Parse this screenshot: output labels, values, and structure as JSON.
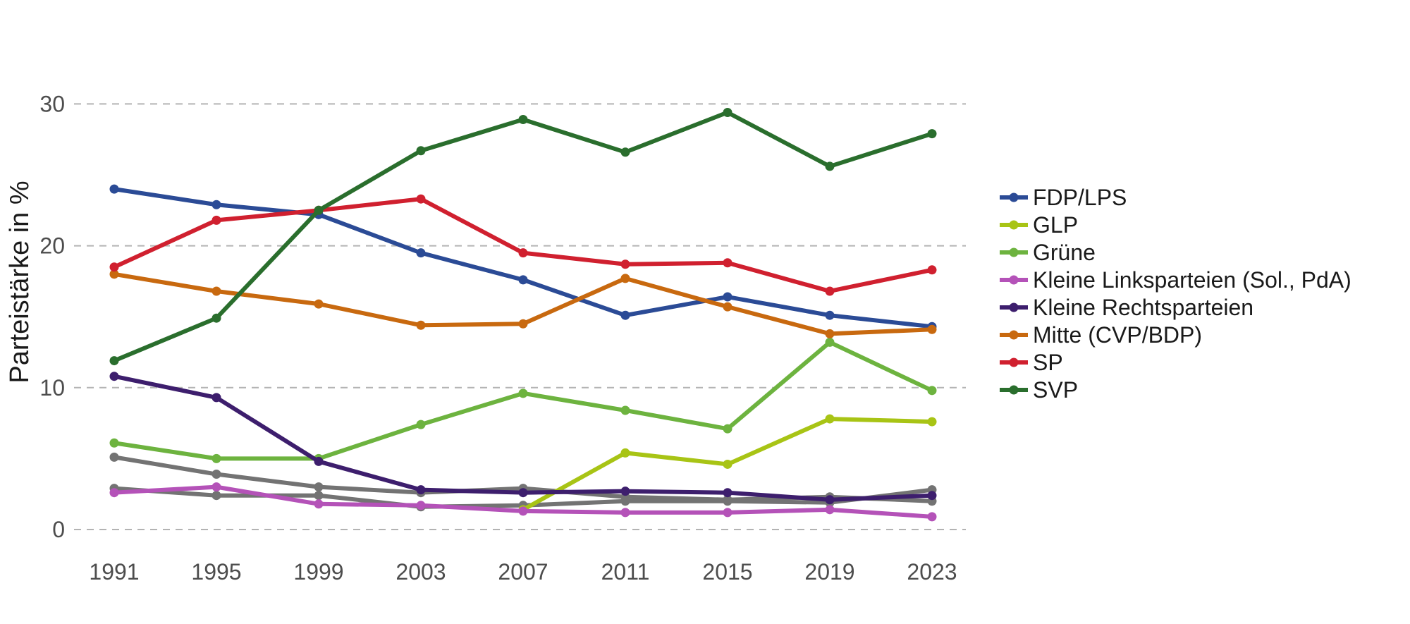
{
  "chart_data": {
    "type": "line",
    "title": "",
    "xlabel": "",
    "ylabel": "Parteistärke in %",
    "x": [
      "1991",
      "1995",
      "1999",
      "2003",
      "2007",
      "2011",
      "2015",
      "2019",
      "2023"
    ],
    "ylim": [
      0,
      32
    ],
    "yticks": [
      0,
      10,
      20,
      30
    ],
    "ytick_labels": [
      "0",
      "10",
      "20",
      "30"
    ],
    "grid": "horizontal dashed",
    "legend_position": "right",
    "series": [
      {
        "name": "FDP/LPS",
        "color": "#2b4b96",
        "values": [
          24.0,
          22.9,
          22.2,
          19.5,
          17.6,
          15.1,
          16.4,
          15.1,
          14.3
        ]
      },
      {
        "name": "GLP",
        "color": "#a8c415",
        "values": [
          null,
          null,
          null,
          null,
          1.4,
          5.4,
          4.6,
          7.8,
          7.6
        ]
      },
      {
        "name": "Grüne",
        "color": "#6db33f",
        "values": [
          6.1,
          5.0,
          5.0,
          7.4,
          9.6,
          8.4,
          7.1,
          13.2,
          9.8
        ]
      },
      {
        "name": "Kleine Linksparteien (Sol., PdA)",
        "color": "#b452b8",
        "values": [
          2.6,
          3.0,
          1.8,
          1.7,
          1.3,
          1.2,
          1.2,
          1.4,
          0.9
        ]
      },
      {
        "name": "Kleine Rechtsparteien",
        "color": "#3d1e6d",
        "values": [
          10.8,
          9.3,
          4.8,
          2.8,
          2.6,
          2.7,
          2.6,
          2.1,
          2.4
        ]
      },
      {
        "name": "Mitte (CVP/BDP)",
        "color": "#c8690f",
        "values": [
          18.0,
          16.8,
          15.9,
          14.4,
          14.5,
          17.7,
          15.7,
          13.8,
          14.1
        ]
      },
      {
        "name": "SP",
        "color": "#d0202f",
        "values": [
          18.5,
          21.8,
          22.5,
          23.3,
          19.5,
          18.7,
          18.8,
          16.8,
          18.3
        ]
      },
      {
        "name": "SVP",
        "color": "#2a6e2d",
        "values": [
          11.9,
          14.9,
          22.5,
          26.7,
          28.9,
          26.6,
          29.4,
          25.6,
          27.9
        ]
      }
    ],
    "unlabeled_series": [
      {
        "color": "#737373",
        "values": [
          5.1,
          3.9,
          3.0,
          2.6,
          2.9,
          2.3,
          2.1,
          2.3,
          2.0
        ]
      },
      {
        "color": "#737373",
        "values": [
          2.9,
          2.4,
          2.4,
          1.6,
          1.7,
          2.0,
          2.0,
          1.9,
          2.8
        ]
      }
    ]
  }
}
